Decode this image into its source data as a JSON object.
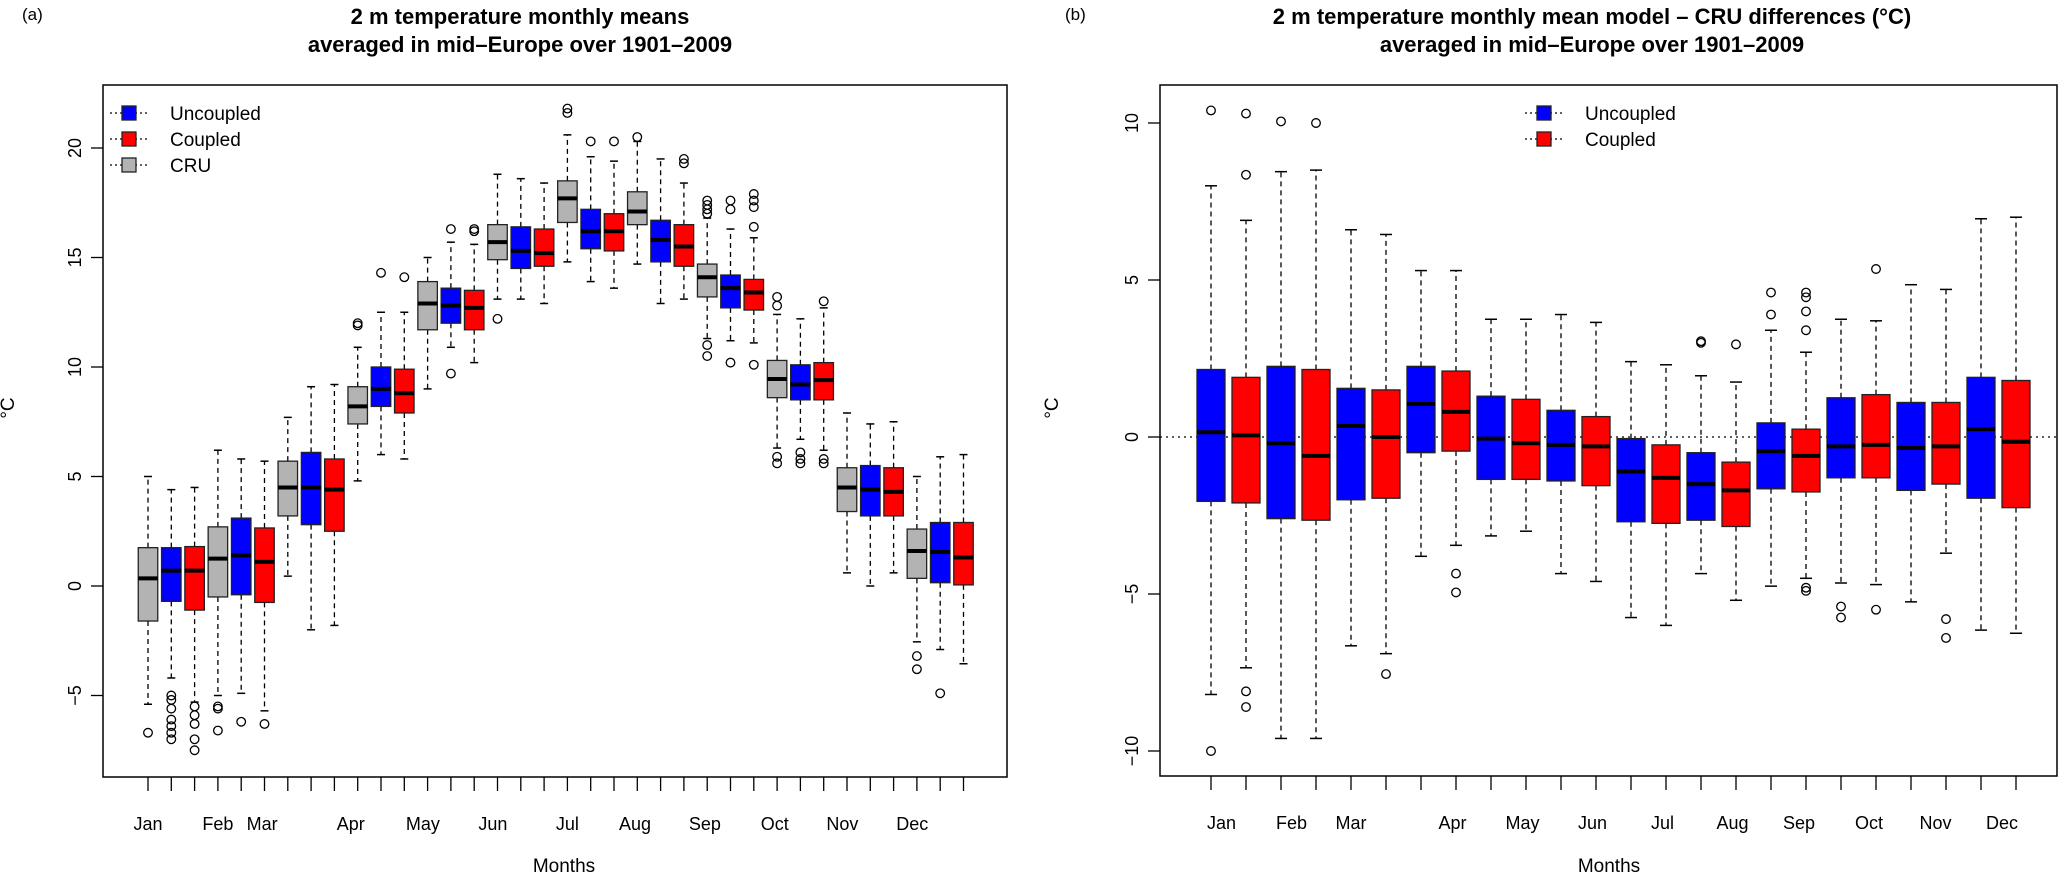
{
  "chart_data": [
    {
      "type": "boxplot",
      "panel_label": "(a)",
      "title_line1": "2 m temperature monthly means",
      "title_line2": "averaged in mid–Europe over 1901–2009",
      "xlabel": "Months",
      "ylabel": "°C",
      "ylim": [
        -8.6,
        22.5
      ],
      "yticks": [
        -5,
        0,
        5,
        10,
        15,
        20
      ],
      "ytick_labels": [
        "−5",
        "0",
        "5",
        "10",
        "15",
        "20"
      ],
      "categories": [
        "Jan",
        "Feb",
        "Mar",
        "Apr",
        "May",
        "Jun",
        "Jul",
        "Aug",
        "Sep",
        "Oct",
        "Nov",
        "Dec"
      ],
      "legend": {
        "position": "top-left",
        "entries": [
          {
            "name": "Uncoupled",
            "color": "#0000ff"
          },
          {
            "name": "Coupled",
            "color": "#ff0000"
          },
          {
            "name": "CRU",
            "color": "#b3b3b3"
          }
        ]
      },
      "group_order": [
        "CRU",
        "Uncoupled",
        "Coupled"
      ],
      "boxes": [
        {
          "month": "Jan",
          "series": "CRU",
          "q1": -1.6,
          "median": 0.35,
          "q3": 1.75,
          "whisker_low": -5.4,
          "whisker_high": 5.0,
          "outliers": [
            -6.7
          ]
        },
        {
          "month": "Jan",
          "series": "Uncoupled",
          "q1": -0.7,
          "median": 0.7,
          "q3": 1.75,
          "whisker_low": -4.2,
          "whisker_high": 4.4,
          "outliers": [
            -5.0,
            -5.2,
            -5.6,
            -6.1,
            -6.4,
            -6.7,
            -7.0
          ]
        },
        {
          "month": "Jan",
          "series": "Coupled",
          "q1": -1.1,
          "median": 0.7,
          "q3": 1.8,
          "whisker_low": -5.3,
          "whisker_high": 4.5,
          "outliers": [
            -5.5,
            -5.9,
            -6.3,
            -7.0,
            -7.5
          ]
        },
        {
          "month": "Feb",
          "series": "CRU",
          "q1": -0.5,
          "median": 1.25,
          "q3": 2.7,
          "whisker_low": -5.0,
          "whisker_high": 6.2,
          "outliers": [
            -5.5,
            -5.6,
            -6.6
          ]
        },
        {
          "month": "Feb",
          "series": "Uncoupled",
          "q1": -0.4,
          "median": 1.4,
          "q3": 3.1,
          "whisker_low": -4.9,
          "whisker_high": 5.8,
          "outliers": [
            -6.2
          ]
        },
        {
          "month": "Feb",
          "series": "Coupled",
          "q1": -0.75,
          "median": 1.1,
          "q3": 2.65,
          "whisker_low": -5.7,
          "whisker_high": 5.7,
          "outliers": [
            -6.3
          ]
        },
        {
          "month": "Mar",
          "series": "CRU",
          "q1": 3.2,
          "median": 4.5,
          "q3": 5.7,
          "whisker_low": 0.45,
          "whisker_high": 7.7,
          "outliers": []
        },
        {
          "month": "Mar",
          "series": "Uncoupled",
          "q1": 2.8,
          "median": 4.5,
          "q3": 6.1,
          "whisker_low": -2.0,
          "whisker_high": 9.1,
          "outliers": []
        },
        {
          "month": "Mar",
          "series": "Coupled",
          "q1": 2.5,
          "median": 4.4,
          "q3": 5.8,
          "whisker_low": -1.8,
          "whisker_high": 9.2,
          "outliers": []
        },
        {
          "month": "Apr",
          "series": "CRU",
          "q1": 7.4,
          "median": 8.2,
          "q3": 9.1,
          "whisker_low": 4.8,
          "whisker_high": 10.9,
          "outliers": [
            11.9,
            12.0
          ]
        },
        {
          "month": "Apr",
          "series": "Uncoupled",
          "q1": 8.2,
          "median": 9.0,
          "q3": 10.0,
          "whisker_low": 6.0,
          "whisker_high": 12.5,
          "outliers": [
            14.3
          ]
        },
        {
          "month": "Apr",
          "series": "Coupled",
          "q1": 7.9,
          "median": 8.8,
          "q3": 9.9,
          "whisker_low": 5.8,
          "whisker_high": 12.5,
          "outliers": [
            14.1
          ]
        },
        {
          "month": "May",
          "series": "CRU",
          "q1": 11.7,
          "median": 12.9,
          "q3": 13.9,
          "whisker_low": 9.0,
          "whisker_high": 15.0,
          "outliers": []
        },
        {
          "month": "May",
          "series": "Uncoupled",
          "q1": 12.0,
          "median": 12.8,
          "q3": 13.6,
          "whisker_low": 10.9,
          "whisker_high": 15.7,
          "outliers": [
            16.3,
            9.7
          ]
        },
        {
          "month": "May",
          "series": "Coupled",
          "q1": 11.7,
          "median": 12.7,
          "q3": 13.5,
          "whisker_low": 10.2,
          "whisker_high": 15.6,
          "outliers": [
            16.2,
            16.3
          ]
        },
        {
          "month": "Jun",
          "series": "CRU",
          "q1": 14.9,
          "median": 15.7,
          "q3": 16.5,
          "whisker_low": 13.1,
          "whisker_high": 18.8,
          "outliers": [
            12.2
          ]
        },
        {
          "month": "Jun",
          "series": "Uncoupled",
          "q1": 14.5,
          "median": 15.3,
          "q3": 16.4,
          "whisker_low": 13.1,
          "whisker_high": 18.6,
          "outliers": []
        },
        {
          "month": "Jun",
          "series": "Coupled",
          "q1": 14.6,
          "median": 15.2,
          "q3": 16.3,
          "whisker_low": 12.9,
          "whisker_high": 18.4,
          "outliers": []
        },
        {
          "month": "Jul",
          "series": "CRU",
          "q1": 16.6,
          "median": 17.7,
          "q3": 18.5,
          "whisker_low": 14.8,
          "whisker_high": 20.6,
          "outliers": [
            21.6,
            21.8
          ]
        },
        {
          "month": "Jul",
          "series": "Uncoupled",
          "q1": 15.4,
          "median": 16.2,
          "q3": 17.2,
          "whisker_low": 13.9,
          "whisker_high": 19.6,
          "outliers": [
            20.3
          ]
        },
        {
          "month": "Jul",
          "series": "Coupled",
          "q1": 15.3,
          "median": 16.2,
          "q3": 17.0,
          "whisker_low": 13.6,
          "whisker_high": 19.4,
          "outliers": [
            20.3
          ]
        },
        {
          "month": "Aug",
          "series": "CRU",
          "q1": 16.5,
          "median": 17.1,
          "q3": 18.0,
          "whisker_low": 14.7,
          "whisker_high": 20.3,
          "outliers": [
            20.5
          ]
        },
        {
          "month": "Aug",
          "series": "Uncoupled",
          "q1": 14.8,
          "median": 15.8,
          "q3": 16.7,
          "whisker_low": 12.9,
          "whisker_high": 19.5,
          "outliers": []
        },
        {
          "month": "Aug",
          "series": "Coupled",
          "q1": 14.6,
          "median": 15.5,
          "q3": 16.5,
          "whisker_low": 13.1,
          "whisker_high": 18.4,
          "outliers": [
            19.3,
            19.5
          ]
        },
        {
          "month": "Sep",
          "series": "CRU",
          "q1": 13.2,
          "median": 14.1,
          "q3": 14.7,
          "whisker_low": 11.3,
          "whisker_high": 16.8,
          "outliers": [
            17.0,
            17.2,
            17.4,
            17.6,
            11.0,
            10.5
          ]
        },
        {
          "month": "Sep",
          "series": "Uncoupled",
          "q1": 12.7,
          "median": 13.6,
          "q3": 14.2,
          "whisker_low": 11.2,
          "whisker_high": 16.3,
          "outliers": [
            17.2,
            17.6,
            10.2
          ]
        },
        {
          "month": "Sep",
          "series": "Coupled",
          "q1": 12.6,
          "median": 13.4,
          "q3": 14.0,
          "whisker_low": 11.1,
          "whisker_high": 15.9,
          "outliers": [
            16.4,
            17.3,
            17.6,
            17.9,
            10.1
          ]
        },
        {
          "month": "Oct",
          "series": "CRU",
          "q1": 8.6,
          "median": 9.45,
          "q3": 10.3,
          "whisker_low": 6.3,
          "whisker_high": 12.4,
          "outliers": [
            12.8,
            13.2,
            5.9,
            5.6
          ]
        },
        {
          "month": "Oct",
          "series": "Uncoupled",
          "q1": 8.5,
          "median": 9.2,
          "q3": 10.1,
          "whisker_low": 6.7,
          "whisker_high": 12.2,
          "outliers": [
            6.1,
            5.8,
            5.6
          ]
        },
        {
          "month": "Oct",
          "series": "Coupled",
          "q1": 8.5,
          "median": 9.4,
          "q3": 10.2,
          "whisker_low": 6.2,
          "whisker_high": 12.7,
          "outliers": [
            13.0,
            5.8,
            5.6
          ]
        },
        {
          "month": "Nov",
          "series": "CRU",
          "q1": 3.4,
          "median": 4.5,
          "q3": 5.4,
          "whisker_low": 0.6,
          "whisker_high": 7.9,
          "outliers": []
        },
        {
          "month": "Nov",
          "series": "Uncoupled",
          "q1": 3.2,
          "median": 4.4,
          "q3": 5.5,
          "whisker_low": 0.0,
          "whisker_high": 7.4,
          "outliers": []
        },
        {
          "month": "Nov",
          "series": "Coupled",
          "q1": 3.2,
          "median": 4.3,
          "q3": 5.4,
          "whisker_low": 0.6,
          "whisker_high": 7.5,
          "outliers": []
        },
        {
          "month": "Dec",
          "series": "CRU",
          "q1": 0.35,
          "median": 1.6,
          "q3": 2.6,
          "whisker_low": -2.55,
          "whisker_high": 5.0,
          "outliers": [
            -3.2,
            -3.8
          ]
        },
        {
          "month": "Dec",
          "series": "Uncoupled",
          "q1": 0.15,
          "median": 1.55,
          "q3": 2.9,
          "whisker_low": -2.9,
          "whisker_high": 5.9,
          "outliers": [
            -4.9
          ]
        },
        {
          "month": "Dec",
          "series": "Coupled",
          "q1": 0.05,
          "median": 1.3,
          "q3": 2.9,
          "whisker_low": -3.55,
          "whisker_high": 6.0,
          "outliers": []
        }
      ]
    },
    {
      "type": "boxplot",
      "panel_label": "(b)",
      "title_line1": "2 m temperature monthly mean model – CRU differences (°C)",
      "title_line2": "averaged in mid–Europe over 1901–2009",
      "xlabel": "Months",
      "ylabel": "°C",
      "ylim": [
        -10.8,
        10.9
      ],
      "yticks": [
        -10,
        -5,
        0,
        5,
        10
      ],
      "ytick_labels": [
        "−10",
        "−5",
        "0",
        "5",
        "10"
      ],
      "reference_line": 0,
      "categories": [
        "Jan",
        "Feb",
        "Mar",
        "Apr",
        "May",
        "Jun",
        "Jul",
        "Aug",
        "Sep",
        "Oct",
        "Nov",
        "Dec"
      ],
      "legend": {
        "position": "top-center",
        "entries": [
          {
            "name": "Uncoupled",
            "color": "#0000ff"
          },
          {
            "name": "Coupled",
            "color": "#ff0000"
          }
        ]
      },
      "group_order": [
        "Uncoupled",
        "Coupled"
      ],
      "boxes": [
        {
          "month": "Jan",
          "series": "Uncoupled",
          "q1": -2.05,
          "median": 0.15,
          "q3": 2.15,
          "whisker_low": -8.2,
          "whisker_high": 8.0,
          "outliers": [
            10.4,
            -10.0
          ]
        },
        {
          "month": "Jan",
          "series": "Coupled",
          "q1": -2.1,
          "median": 0.05,
          "q3": 1.9,
          "whisker_low": -7.35,
          "whisker_high": 6.9,
          "outliers": [
            10.3,
            8.35,
            -8.1,
            -8.6
          ]
        },
        {
          "month": "Feb",
          "series": "Uncoupled",
          "q1": -2.6,
          "median": -0.2,
          "q3": 2.25,
          "whisker_low": -9.6,
          "whisker_high": 8.45,
          "outliers": [
            10.05
          ]
        },
        {
          "month": "Feb",
          "series": "Coupled",
          "q1": -2.65,
          "median": -0.6,
          "q3": 2.15,
          "whisker_low": -9.6,
          "whisker_high": 8.5,
          "outliers": [
            10.0
          ]
        },
        {
          "month": "Mar",
          "series": "Uncoupled",
          "q1": -2.0,
          "median": 0.35,
          "q3": 1.55,
          "whisker_low": -6.65,
          "whisker_high": 6.6,
          "outliers": []
        },
        {
          "month": "Mar",
          "series": "Coupled",
          "q1": -1.95,
          "median": 0.0,
          "q3": 1.5,
          "whisker_low": -6.9,
          "whisker_high": 6.45,
          "outliers": [
            -7.55
          ]
        },
        {
          "month": "Apr",
          "series": "Uncoupled",
          "q1": -0.5,
          "median": 1.05,
          "q3": 2.25,
          "whisker_low": -3.8,
          "whisker_high": 5.3,
          "outliers": []
        },
        {
          "month": "Apr",
          "series": "Coupled",
          "q1": -0.45,
          "median": 0.8,
          "q3": 2.1,
          "whisker_low": -3.45,
          "whisker_high": 5.3,
          "outliers": [
            -4.35,
            -4.95
          ]
        },
        {
          "month": "May",
          "series": "Uncoupled",
          "q1": -1.35,
          "median": -0.05,
          "q3": 1.3,
          "whisker_low": -3.15,
          "whisker_high": 3.75,
          "outliers": []
        },
        {
          "month": "May",
          "series": "Coupled",
          "q1": -1.35,
          "median": -0.2,
          "q3": 1.2,
          "whisker_low": -3.0,
          "whisker_high": 3.75,
          "outliers": []
        },
        {
          "month": "Jun",
          "series": "Uncoupled",
          "q1": -1.4,
          "median": -0.25,
          "q3": 0.85,
          "whisker_low": -4.35,
          "whisker_high": 3.9,
          "outliers": []
        },
        {
          "month": "Jun",
          "series": "Coupled",
          "q1": -1.55,
          "median": -0.3,
          "q3": 0.65,
          "whisker_low": -4.6,
          "whisker_high": 3.65,
          "outliers": []
        },
        {
          "month": "Jul",
          "series": "Uncoupled",
          "q1": -2.7,
          "median": -1.1,
          "q3": -0.05,
          "whisker_low": -5.75,
          "whisker_high": 2.4,
          "outliers": []
        },
        {
          "month": "Jul",
          "series": "Coupled",
          "q1": -2.75,
          "median": -1.3,
          "q3": -0.25,
          "whisker_low": -6.0,
          "whisker_high": 2.3,
          "outliers": []
        },
        {
          "month": "Aug",
          "series": "Uncoupled",
          "q1": -2.65,
          "median": -1.5,
          "q3": -0.5,
          "whisker_low": -4.35,
          "whisker_high": 1.95,
          "outliers": [
            3.0,
            3.05
          ]
        },
        {
          "month": "Aug",
          "series": "Coupled",
          "q1": -2.85,
          "median": -1.7,
          "q3": -0.8,
          "whisker_low": -5.2,
          "whisker_high": 1.75,
          "outliers": [
            2.95
          ]
        },
        {
          "month": "Sep",
          "series": "Uncoupled",
          "q1": -1.65,
          "median": -0.45,
          "q3": 0.45,
          "whisker_low": -4.75,
          "whisker_high": 3.4,
          "outliers": [
            3.9,
            4.6
          ]
        },
        {
          "month": "Sep",
          "series": "Coupled",
          "q1": -1.75,
          "median": -0.6,
          "q3": 0.25,
          "whisker_low": -4.5,
          "whisker_high": 2.7,
          "outliers": [
            3.4,
            4.0,
            4.45,
            4.6,
            -4.8,
            -4.9
          ]
        },
        {
          "month": "Oct",
          "series": "Uncoupled",
          "q1": -1.3,
          "median": -0.3,
          "q3": 1.25,
          "whisker_low": -4.65,
          "whisker_high": 3.75,
          "outliers": [
            -5.4,
            -5.75
          ]
        },
        {
          "month": "Oct",
          "series": "Coupled",
          "q1": -1.3,
          "median": -0.25,
          "q3": 1.35,
          "whisker_low": -4.7,
          "whisker_high": 3.7,
          "outliers": [
            5.35,
            -5.5
          ]
        },
        {
          "month": "Nov",
          "series": "Uncoupled",
          "q1": -1.7,
          "median": -0.35,
          "q3": 1.1,
          "whisker_low": -5.25,
          "whisker_high": 4.85,
          "outliers": []
        },
        {
          "month": "Nov",
          "series": "Coupled",
          "q1": -1.5,
          "median": -0.3,
          "q3": 1.1,
          "whisker_low": -3.7,
          "whisker_high": 4.7,
          "outliers": [
            -5.8,
            -6.4
          ]
        },
        {
          "month": "Dec",
          "series": "Uncoupled",
          "q1": -1.95,
          "median": 0.25,
          "q3": 1.9,
          "whisker_low": -6.15,
          "whisker_high": 6.95,
          "outliers": []
        },
        {
          "month": "Dec",
          "series": "Coupled",
          "q1": -2.25,
          "median": -0.15,
          "q3": 1.8,
          "whisker_low": -6.25,
          "whisker_high": 7.0,
          "outliers": []
        }
      ]
    }
  ],
  "colors": {
    "Uncoupled": "#0000ff",
    "Coupled": "#ff0000",
    "CRU": "#b3b3b3"
  }
}
